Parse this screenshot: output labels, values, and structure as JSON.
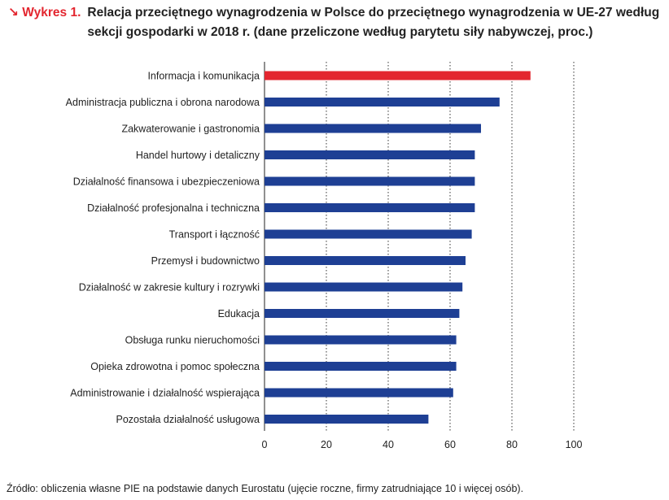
{
  "header": {
    "figure_label": "↘ Wykres 1.",
    "title": "Relacja przeciętnego wynagrodzenia w Polsce do przeciętnego wynagrodzenia w UE-27 według sekcji gospodarki w 2018 r. (dane przeliczone według parytetu siły nabywczej, proc.)"
  },
  "colors": {
    "highlight": "#e3262f",
    "bar": "#1e3f94",
    "accent": "#e3262f"
  },
  "chart_data": {
    "type": "bar",
    "orientation": "horizontal",
    "title": "",
    "xlabel": "",
    "ylabel": "",
    "xlim": [
      0,
      100
    ],
    "xticks": [
      0,
      20,
      40,
      60,
      80,
      100
    ],
    "grid": "vertical dotted",
    "categories": [
      "Informacja i komunikacja",
      "Administracja publiczna i obrona narodowa",
      "Zakwaterowanie i gastronomia",
      "Handel hurtowy i detaliczny",
      "Działalność finansowa i ubezpieczeniowa",
      "Działalność profesjonalna i techniczna",
      "Transport i łączność",
      "Przemysł i budownictwo",
      "Działalność w zakresie kultury i rozrywki",
      "Edukacja",
      "Obsługa runku nieruchomości",
      "Opieka zdrowotna i pomoc społeczna",
      "Administrowanie i działalność wspierająca",
      "Pozostała działalność usługowa"
    ],
    "values": [
      86,
      76,
      70,
      68,
      68,
      68,
      67,
      65,
      64,
      63,
      62,
      62,
      61,
      53
    ],
    "highlight_index": 0
  },
  "footer": {
    "source": "Źródło: obliczenia własne PIE na podstawie danych Eurostatu (ujęcie roczne, firmy zatrudniające 10 i więcej osób)."
  }
}
